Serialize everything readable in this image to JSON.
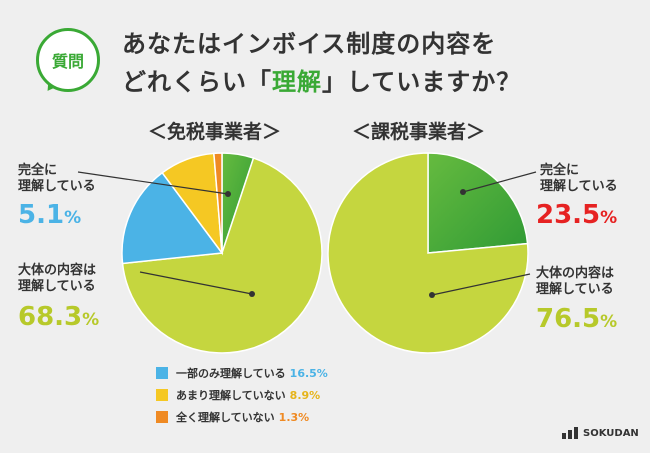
{
  "header": {
    "badge_label": "質問",
    "question_line1": "あなたはインボイス制度の内容を",
    "question_line2_pre": "どれくらい「",
    "question_line2_hl": "理解",
    "question_line2_post": "」していますか？"
  },
  "colors": {
    "full": "#3aa935",
    "mostly": "#c5d63f",
    "partial": "#4bb3e6",
    "little": "#f5c823",
    "none": "#ef8a23",
    "red": "#e62222",
    "blue": "#4bb3e6",
    "olive": "#b7c92a"
  },
  "labels": {
    "full": "完全に\n理解している",
    "mostly": "大体の内容は\n理解している"
  },
  "legend": [
    {
      "label": "一部のみ理解している",
      "value": "16.5%",
      "color": "#4bb3e6"
    },
    {
      "label": "あまり理解していない",
      "value": "8.9%",
      "color": "#f5c823"
    },
    {
      "label": "全く理解していない",
      "value": "1.3%",
      "color": "#ef8a23"
    }
  ],
  "logo_text": "SOKUDAN",
  "chart_data": [
    {
      "type": "pie",
      "title": "＜免税事業者＞",
      "categories": [
        "完全に理解している",
        "大体の内容は理解している",
        "一部のみ理解している",
        "あまり理解していない",
        "全く理解していない"
      ],
      "values": [
        5.1,
        68.3,
        16.5,
        8.9,
        1.3
      ],
      "colors": [
        "#3aa935",
        "#c5d63f",
        "#4bb3e6",
        "#f5c823",
        "#ef8a23"
      ],
      "data_labels": {
        "full": "5.1",
        "mostly": "68.3"
      }
    },
    {
      "type": "pie",
      "title": "＜課税事業者＞",
      "categories": [
        "完全に理解している",
        "大体の内容は理解している"
      ],
      "values": [
        23.5,
        76.5
      ],
      "colors": [
        "#3aa935",
        "#c5d63f"
      ],
      "data_labels": {
        "full": "23.5",
        "mostly": "76.5"
      }
    }
  ]
}
